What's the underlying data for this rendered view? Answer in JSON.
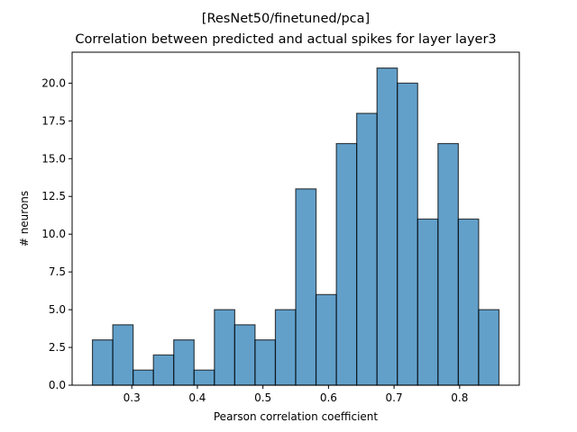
{
  "chart_data": {
    "type": "histogram",
    "title_line1": "[ResNet50/finetuned/pca]",
    "title_line2": "Correlation between predicted and actual spikes for layer layer3",
    "xlabel": "Pearson correlation coefficient",
    "ylabel": "# neurons",
    "bin_start": 0.24,
    "bin_width": 0.031,
    "counts": [
      3,
      4,
      1,
      2,
      3,
      1,
      5,
      4,
      3,
      5,
      13,
      6,
      16,
      18,
      21,
      20,
      11,
      16,
      11,
      5
    ],
    "xlim": [
      0.209,
      0.891
    ],
    "ylim": [
      0,
      22.05
    ],
    "xticks": [
      0.3,
      0.4,
      0.5,
      0.6,
      0.7,
      0.8
    ],
    "xtick_labels": [
      "0.3",
      "0.4",
      "0.5",
      "0.6",
      "0.7",
      "0.8"
    ],
    "yticks": [
      0,
      2.5,
      5,
      7.5,
      10,
      12.5,
      15,
      17.5,
      20
    ],
    "ytick_labels": [
      "0.0",
      "2.5",
      "5.0",
      "7.5",
      "10.0",
      "12.5",
      "15.0",
      "17.5",
      "20.0"
    ],
    "bar_color": "#1f77b4",
    "bar_edge_color": "#000000",
    "grid": false,
    "legend": "none"
  }
}
